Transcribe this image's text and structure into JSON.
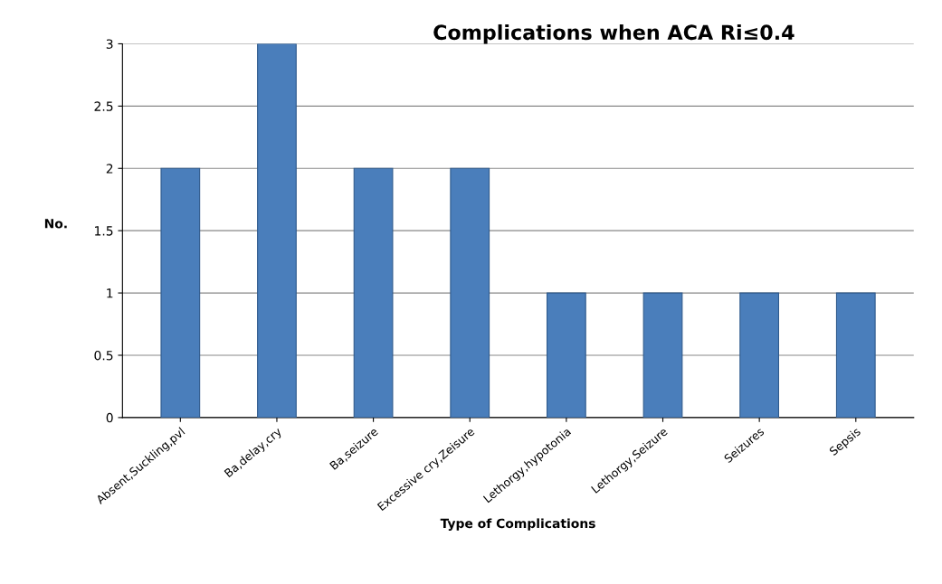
{
  "chart_data": {
    "type": "bar",
    "title": "Complications when ACA Ri≤0.4",
    "xlabel": "Type of Complications",
    "ylabel": "No.",
    "categories": [
      "Absent,Suckling,pvl",
      "Ba,delay,cry",
      "Ba,seizure",
      "Excessive cry,Zeisure",
      "Lethorgy,hypotonia",
      "Lethorgy,Seizure",
      "Seizures",
      "Sepsis"
    ],
    "values": [
      2,
      3,
      2,
      2,
      1,
      1,
      1,
      1
    ],
    "color": "#4a7ebb",
    "ylim": [
      0,
      3
    ],
    "yticks": [
      0,
      0.5,
      1,
      1.5,
      2,
      2.5,
      3
    ],
    "grid": "y"
  }
}
